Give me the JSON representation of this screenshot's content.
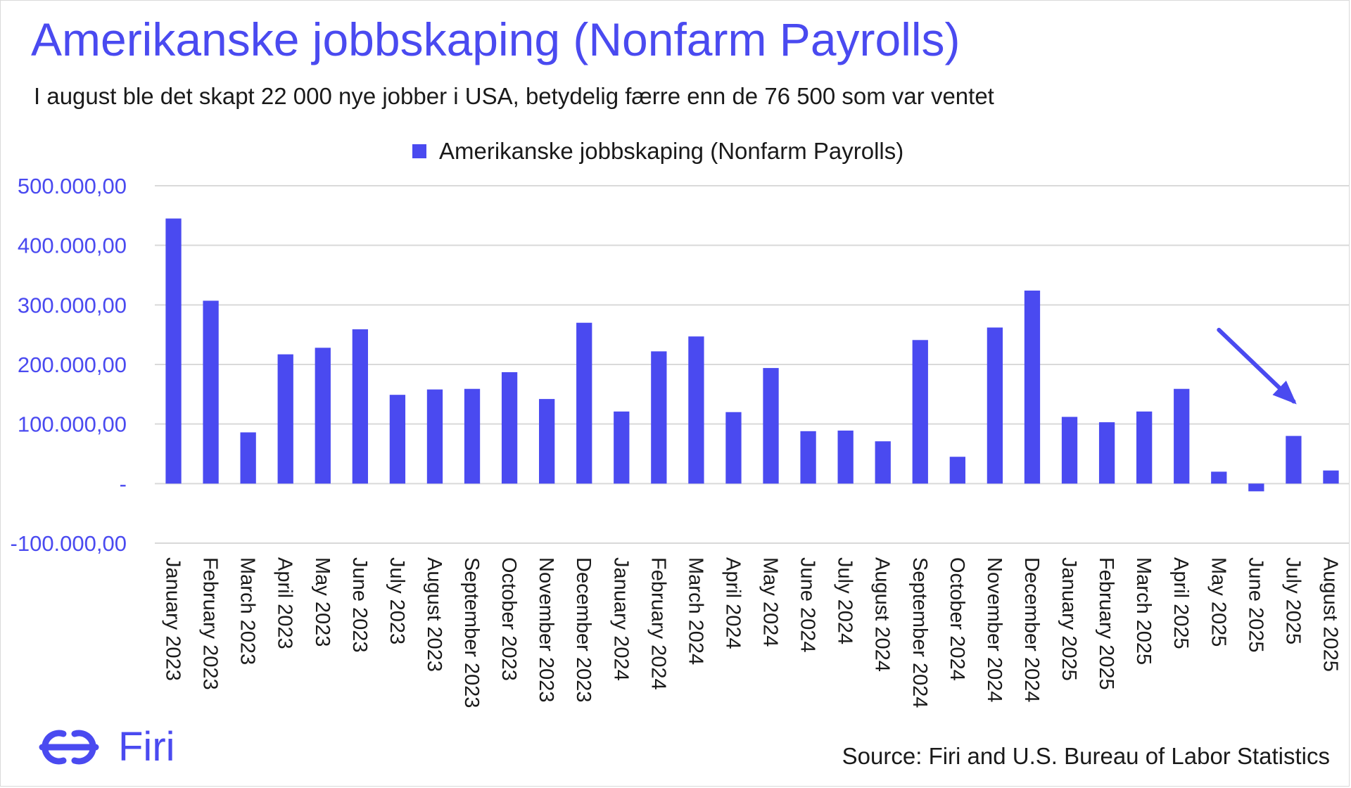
{
  "header": {
    "title": "Amerikanske jobbskaping (Nonfarm Payrolls)",
    "subtitle": "I august ble det skapt 22 000 nye jobber i USA, betydelig færre enn de 76 500 som var ventet"
  },
  "footer": {
    "logo_text": "Firi",
    "source": "Source: Firi and U.S. Bureau of Labor Statistics"
  },
  "colors": {
    "accent": "#4a4af0",
    "grid": "#d9d9d9",
    "text": "#1a1a1a"
  },
  "chart_data": {
    "type": "bar",
    "legend": "top-center",
    "grid": true,
    "ylim": [
      -100000,
      500000
    ],
    "y_ticks": [
      {
        "value": 500000,
        "label": "500.000,00"
      },
      {
        "value": 400000,
        "label": "400.000,00"
      },
      {
        "value": 300000,
        "label": "300.000,00"
      },
      {
        "value": 200000,
        "label": "200.000,00"
      },
      {
        "value": 100000,
        "label": "100.000,00"
      },
      {
        "value": 0,
        "label": "-"
      },
      {
        "value": -100000,
        "label": "-100.000,00"
      }
    ],
    "categories": [
      "January 2023",
      "February 2023",
      "March 2023",
      "April 2023",
      "May 2023",
      "June 2023",
      "July 2023",
      "August 2023",
      "September 2023",
      "October 2023",
      "November 2023",
      "December 2023",
      "January 2024",
      "February 2024",
      "March 2024",
      "April 2024",
      "May 2024",
      "June 2024",
      "July 2024",
      "August 2024",
      "September 2024",
      "October 2024",
      "November 2024",
      "December 2024",
      "January 2025",
      "February 2025",
      "March 2025",
      "April 2025",
      "May 2025",
      "June 2025",
      "July 2025",
      "August 2025"
    ],
    "series": [
      {
        "name": "Amerikanske jobbskaping (Nonfarm Payrolls)",
        "values": [
          445000,
          307000,
          86000,
          217000,
          228000,
          259000,
          149000,
          158000,
          159000,
          187000,
          142000,
          270000,
          121000,
          222000,
          247000,
          120000,
          194000,
          88000,
          89000,
          71000,
          241000,
          45000,
          262000,
          324000,
          112000,
          103000,
          121000,
          159000,
          20000,
          -13000,
          80000,
          22000
        ]
      }
    ],
    "annotation": {
      "type": "arrow",
      "from_category": "May 2025",
      "to_category": "July 2025",
      "from_value": 258000,
      "to_value": 138000
    }
  }
}
